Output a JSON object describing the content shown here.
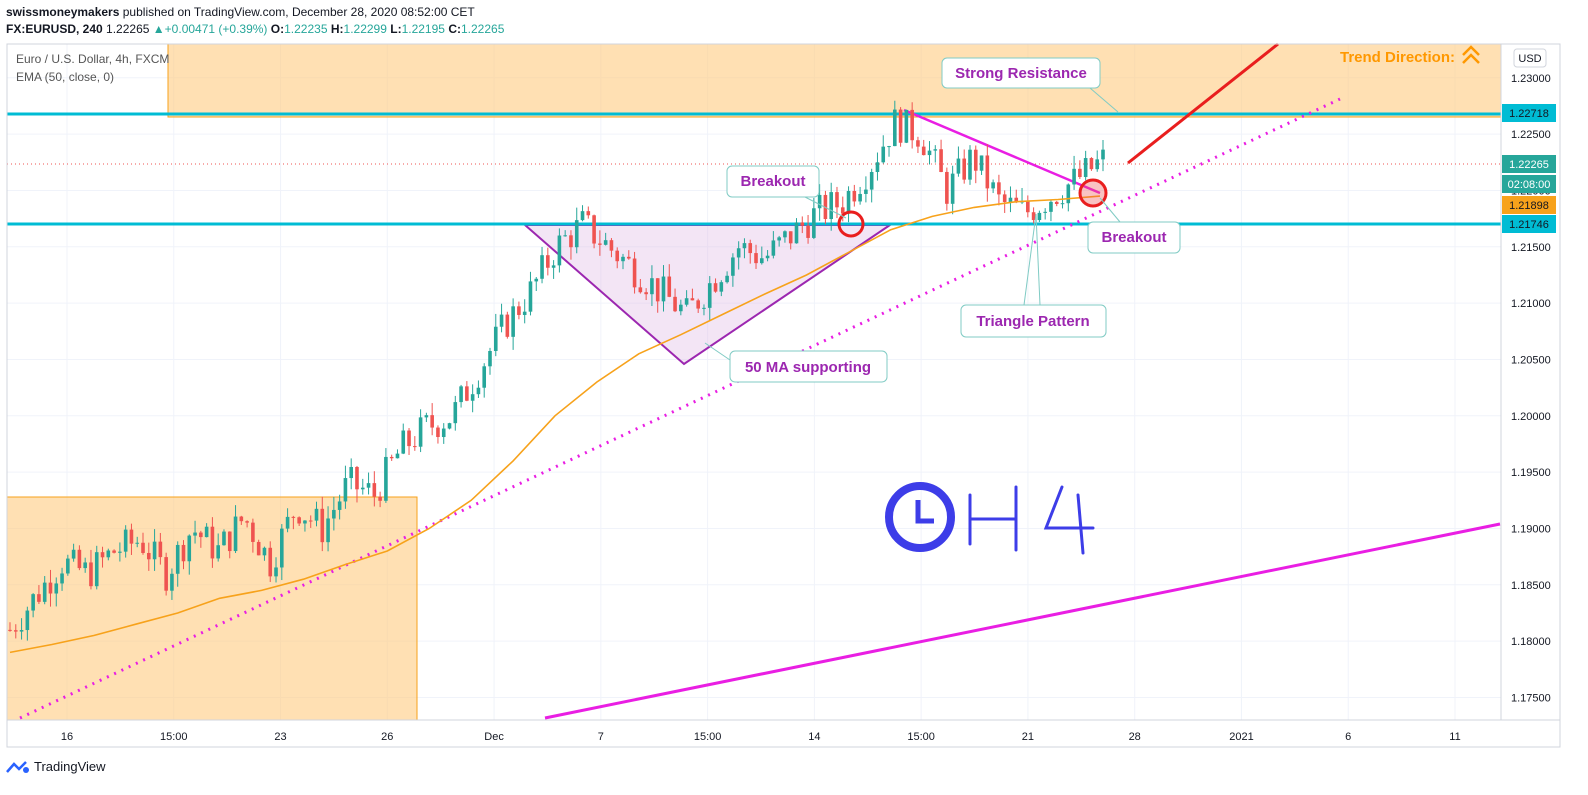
{
  "header": {
    "publisher": "swissmoneymakers",
    "published_text": "published on TradingView.com, December 28, 2020 08:52:00 CET",
    "symbol": "FX:EURUSD, 240",
    "last": "1.22265",
    "change": "+0.00471 (+0.39%)",
    "o_label": "O:",
    "o": "1.22235",
    "h_label": "H:",
    "h": "1.22299",
    "l_label": "L:",
    "l": "1.22195",
    "c_label": "C:",
    "c": "1.22265"
  },
  "legend": {
    "title": "Euro / U.S. Dollar, 4h, FXCM",
    "indicator": "EMA (50, close, 0)"
  },
  "currency": "USD",
  "price_labels": {
    "resistance": "1.22718",
    "current": "1.22265",
    "countdown": "02:08:00",
    "ema": "1.21898",
    "support": "1.21746"
  },
  "annotations": {
    "trend_direction": "Trend Direction:",
    "strong_resistance": "Strong Resistance",
    "breakout1": "Breakout",
    "breakout2": "Breakout",
    "triangle_pattern": "Triangle Pattern",
    "ma_supporting": "50 MA supporting",
    "timeframe_handwritten": "H4"
  },
  "colors": {
    "bull": "#26a69a",
    "bear": "#ef5350",
    "ema": "#f7a21b",
    "support_line": "#00bcd4",
    "trendline": "#e91ee3",
    "triangle": "#9c27b0",
    "zone": "#ffcc80",
    "annotation_text": "#9c27b0",
    "trend_text": "#ff9800",
    "arrow": "#e91e1e",
    "clock": "#3d3de8"
  },
  "footer": {
    "brand": "TradingView"
  },
  "chart_data": {
    "type": "candlestick",
    "title": "Euro / U.S. Dollar, 4h, FXCM",
    "ylim": [
      1.173,
      1.233
    ],
    "y_ticks": [
      "1.23000",
      "1.22500",
      "1.22000",
      "1.21500",
      "1.21000",
      "1.20500",
      "1.20000",
      "1.19500",
      "1.19000",
      "1.18500",
      "1.18000",
      "1.17500"
    ],
    "x_ticks": [
      "16",
      "15:00",
      "23",
      "26",
      "Dec",
      "7",
      "15:00",
      "14",
      "15:00",
      "21",
      "28",
      "2021",
      "6",
      "11"
    ],
    "levels": {
      "strong_resistance": 1.22718,
      "support": 1.21746,
      "current": 1.22265
    },
    "ema50": [
      1.179,
      1.1797,
      1.1805,
      1.1815,
      1.1825,
      1.1838,
      1.1845,
      1.1855,
      1.1868,
      1.188,
      1.19,
      1.1925,
      1.196,
      1.2,
      1.203,
      1.2055,
      1.2072,
      1.209,
      1.2108,
      1.2125,
      1.2145,
      1.2165,
      1.2177,
      1.2185,
      1.219,
      1.2192,
      1.2195
    ],
    "candles_close_path": [
      1.181,
      1.184,
      1.187,
      1.186,
      1.188,
      1.189,
      1.186,
      1.19,
      1.188,
      1.191,
      1.187,
      1.192,
      1.19,
      1.194,
      1.193,
      1.197,
      1.199,
      1.2,
      1.204,
      1.208,
      1.211,
      1.215,
      1.217,
      1.215,
      1.213,
      1.211,
      1.209,
      1.212,
      1.215,
      1.214,
      1.216,
      1.218,
      1.219,
      1.222,
      1.226,
      1.225,
      1.22,
      1.223,
      1.219,
      1.218,
      1.2195,
      1.221,
      1.2227
    ]
  }
}
